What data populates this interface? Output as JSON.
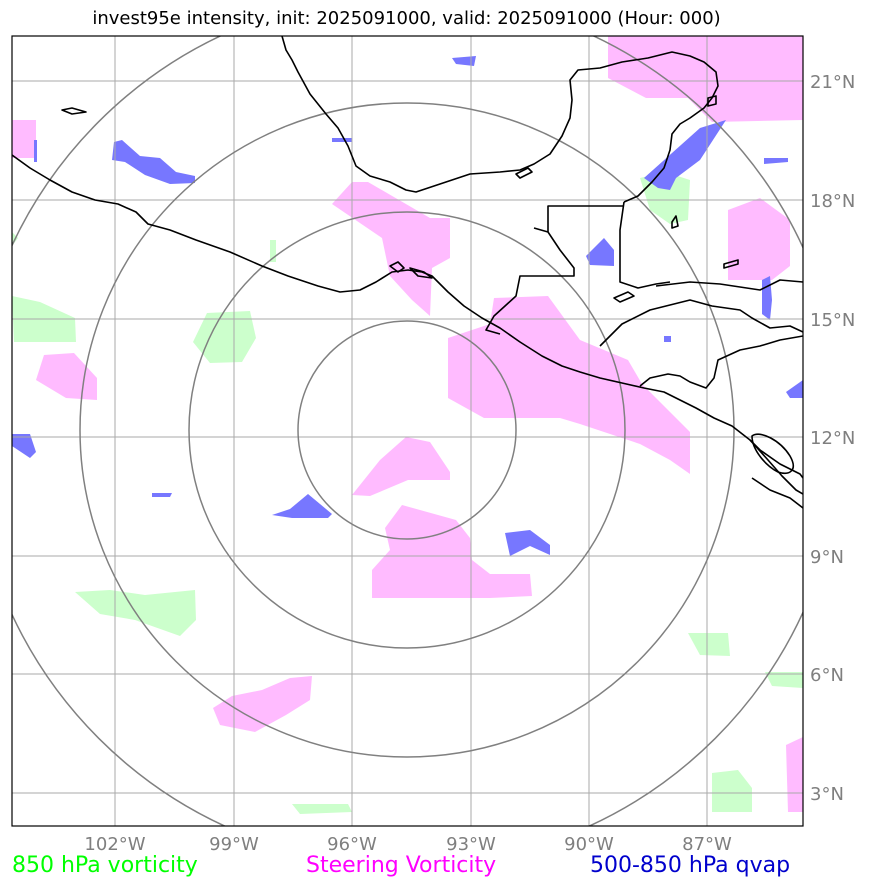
{
  "title": "invest95e intensity, init: 2025091000, valid: 2025091000 (Hour: 000)",
  "map": {
    "lon_labels": [
      "102°W",
      "99°W",
      "96°W",
      "93°W",
      "90°W",
      "87°W"
    ],
    "lat_labels": [
      "21°N",
      "18°N",
      "15°N",
      "12°N",
      "9°N",
      "6°N",
      "3°N"
    ],
    "range_rings_count": 4,
    "colors": {
      "vorticity_850": "#ccffcc",
      "steering_vorticity": "#ffbbff",
      "qvap": "#7777ff",
      "grid": "#aaaaaa",
      "rings": "#808080",
      "coast": "#000000"
    }
  },
  "legend": {
    "vorticity_850": "850 hPa vorticity",
    "steering": "Steering Vorticity",
    "qvap": "500-850 hPa qvap"
  }
}
